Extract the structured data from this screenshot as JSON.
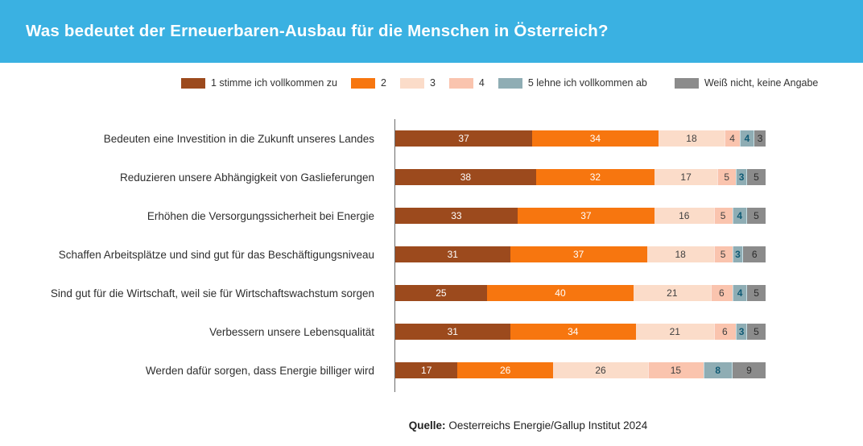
{
  "header": {
    "title": "Was bedeutet der Erneuerbaren-Ausbau für die Menschen in Österreich?",
    "background": "#3AB1E2",
    "text_color": "#FFFFFF"
  },
  "chart_data": {
    "type": "bar",
    "variant": "horizontal-stacked",
    "unit": "percent",
    "xlim": [
      0,
      100
    ],
    "grid": false,
    "legend_position": "top",
    "categories": [
      "Bedeuten eine Investition in die Zukunft unseres Landes",
      "Reduzieren unsere Abhängigkeit von Gaslieferungen",
      "Erhöhen die Versorgungssicherheit bei Energie",
      "Schaffen Arbeitsplätze und sind gut für das Beschäftigungsniveau",
      "Sind gut für die Wirtschaft, weil sie für Wirtschaftswachstum sorgen",
      "Verbessern unsere Lebensqualität",
      "Werden dafür sorgen, dass Energie billiger wird"
    ],
    "series": [
      {
        "name": "1 stimme ich vollkommen zu",
        "color": "#9C4A1D",
        "label_color": "#FFFFFF",
        "values": [
          37,
          38,
          33,
          31,
          25,
          31,
          17
        ]
      },
      {
        "name": "2",
        "color": "#F7760F",
        "label_color": "#FFFFFF",
        "values": [
          34,
          32,
          37,
          37,
          40,
          34,
          26
        ]
      },
      {
        "name": "3",
        "color": "#FBDCC9",
        "label_color": "#3F3F3F",
        "values": [
          18,
          17,
          16,
          18,
          21,
          21,
          26
        ]
      },
      {
        "name": "4",
        "color": "#FAC4AE",
        "label_color": "#3F3F3F",
        "values": [
          4,
          5,
          5,
          5,
          6,
          6,
          15
        ]
      },
      {
        "name": "5 lehne ich vollkommen ab",
        "color": "#8FADB4",
        "label_color": "#0F5A74",
        "values": [
          4,
          3,
          4,
          3,
          4,
          3,
          8
        ]
      },
      {
        "name": "Weiß nicht, keine Angabe",
        "color": "#8B8B8B",
        "label_color": "#2B2B2B",
        "values": [
          3,
          5,
          5,
          6,
          5,
          5,
          9
        ]
      }
    ]
  },
  "source": {
    "prefix": "Quelle:",
    "text": " Oesterreichs Energie/Gallup Institut 2024"
  }
}
